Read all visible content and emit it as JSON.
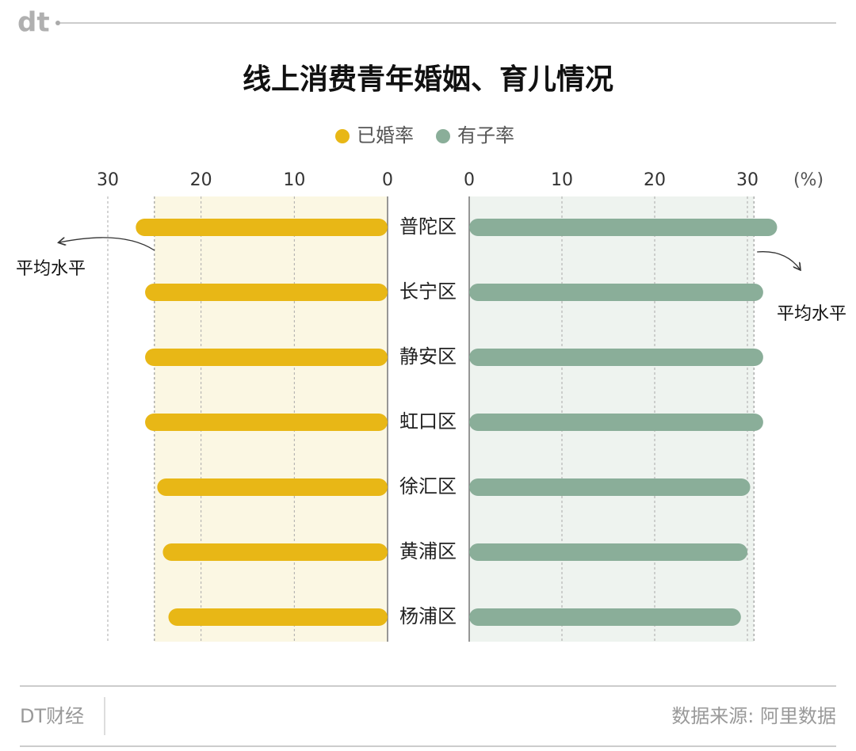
{
  "header": {
    "logo": "dt"
  },
  "chart_data": {
    "type": "butterfly-bar",
    "title": "线上消费青年婚姻、育儿情况",
    "unit_label": "(%)",
    "categories": [
      "普陀区",
      "长宁区",
      "静安区",
      "虹口区",
      "徐汇区",
      "黄浦区",
      "杨浦区"
    ],
    "series": [
      {
        "name": "已婚率",
        "color": "#e8b716",
        "shade": "#fbf7e3",
        "values": [
          27,
          26,
          26,
          26,
          24.7,
          24.1,
          23.5
        ],
        "average": 25
      },
      {
        "name": "有子率",
        "color": "#8aae99",
        "shade": "#eef3ef",
        "values": [
          33.2,
          31.7,
          31.7,
          31.7,
          30.3,
          30,
          29.3
        ],
        "average": 30.7
      }
    ],
    "average_label": "平均水平",
    "xlim": [
      0,
      30
    ],
    "xticks": [
      0,
      10,
      20,
      30
    ],
    "grid": true
  },
  "footer": {
    "brand": "DT财经",
    "source": "数据来源: 阿里数据"
  }
}
